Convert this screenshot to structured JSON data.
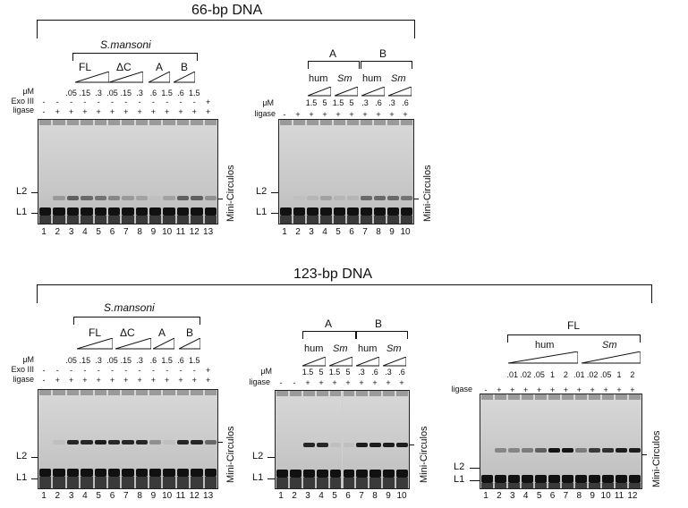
{
  "top": {
    "title": "66-bp DNA",
    "left": {
      "group_label": "S.mansoni",
      "subgroups": [
        "FL",
        "ΔC",
        "A",
        "B"
      ],
      "um_label": "μM",
      "exo_label": "Exo III",
      "ligase_label": "ligase",
      "um_values": [
        ".05",
        ".15",
        ".3",
        ".05",
        ".15",
        ".3",
        ".6",
        "1.5",
        ".6",
        "1.5",
        ".6",
        "1.5",
        ""
      ],
      "um_display": [
        ".05",
        ".15",
        ".3",
        ".05",
        ".15",
        ".3",
        ".6",
        "1.5",
        ".6",
        "1.5"
      ],
      "exo_values": [
        "-",
        "-",
        "-",
        "-",
        "-",
        "-",
        "-",
        "-",
        "-",
        "-",
        "-",
        "-",
        "+"
      ],
      "ligase_values": [
        "-",
        "+",
        "+",
        "+",
        "+",
        "+",
        "+",
        "+",
        "+",
        "+",
        "+",
        "+",
        "+"
      ],
      "lanes": [
        "1",
        "2",
        "3",
        "4",
        "5",
        "6",
        "7",
        "8",
        "9",
        "10",
        "11",
        "12",
        "13"
      ],
      "band_l2": "L2",
      "band_l1": "L1",
      "side_label": "Mini-Circulos"
    },
    "right": {
      "groups": [
        "A",
        "B"
      ],
      "subgroups": [
        "hum",
        "Sm",
        "hum",
        "Sm"
      ],
      "um_label": "μM",
      "ligase_label": "ligase",
      "um_values": [
        "1.5",
        "5",
        "1.5",
        "5",
        ".3",
        ".6",
        ".3",
        ".6"
      ],
      "ligase_values": [
        "-",
        "+",
        "+",
        "+",
        "+",
        "+",
        "+",
        "+",
        "+",
        "+"
      ],
      "lanes": [
        "1",
        "2",
        "3",
        "4",
        "5",
        "6",
        "7",
        "8",
        "9",
        "10"
      ],
      "band_l2": "L2",
      "band_l1": "L1",
      "side_label": "Mini-Circulos"
    }
  },
  "bottom": {
    "title": "123-bp DNA",
    "left": {
      "group_label": "S.mansoni",
      "subgroups": [
        "FL",
        "ΔC",
        "A",
        "B"
      ],
      "um_label": "μM",
      "exo_label": "Exo III",
      "ligase_label": "ligase",
      "um_values": [
        ".05",
        ".15",
        ".3",
        ".05",
        ".15",
        ".3",
        ".6",
        "1.5",
        ".6",
        "1.5"
      ],
      "exo_values": [
        "-",
        "-",
        "-",
        "-",
        "-",
        "-",
        "-",
        "-",
        "-",
        "-",
        "-",
        "-",
        "+"
      ],
      "ligase_values": [
        "-",
        "+",
        "+",
        "+",
        "+",
        "+",
        "+",
        "+",
        "+",
        "+",
        "+",
        "+",
        "+"
      ],
      "lanes": [
        "1",
        "2",
        "3",
        "4",
        "5",
        "6",
        "7",
        "8",
        "9",
        "10",
        "11",
        "12",
        "13"
      ],
      "band_l2": "L2",
      "band_l1": "L1",
      "side_label": "Mini-Circulos"
    },
    "middle": {
      "groups": [
        "A",
        "B"
      ],
      "subgroups": [
        "hum",
        "Sm",
        "hum",
        "Sm"
      ],
      "um_label": "μM",
      "ligase_label": "ligase",
      "um_values": [
        "1.5",
        "5",
        "1.5",
        "5",
        ".3",
        ".6",
        ".3",
        ".6"
      ],
      "ligase_values": [
        "-",
        "-",
        "+",
        "+",
        "+",
        "+",
        "+",
        "+",
        "+",
        "+"
      ],
      "lanes": [
        "1",
        "2",
        "3",
        "4",
        "5",
        "6",
        "7",
        "8",
        "9",
        "10"
      ],
      "band_l2": "L2",
      "band_l1": "L1",
      "side_label": "Mini-Circulos"
    },
    "right": {
      "group_label": "FL",
      "subgroups": [
        "hum",
        "Sm"
      ],
      "ligase_label": "ligase",
      "um_values": [
        ".01",
        ".02",
        ".05",
        "1",
        "2",
        ".01",
        ".02",
        ".05",
        "1",
        "2"
      ],
      "ligase_values": [
        "-",
        "+",
        "+",
        "+",
        "+",
        "+",
        "+",
        "+",
        "+",
        "+",
        "+",
        "+"
      ],
      "lanes": [
        "1",
        "2",
        "3",
        "4",
        "5",
        "6",
        "7",
        "8",
        "9",
        "10",
        "11",
        "12"
      ],
      "band_l2": "L2",
      "band_l1": "L1",
      "side_label": "Mini-Circulos"
    }
  },
  "l2_intensity": {
    "top_left": [
      0,
      0.25,
      0.55,
      0.5,
      0.45,
      0.35,
      0.25,
      0.2,
      0.05,
      0.2,
      0.55,
      0.55,
      0.3
    ],
    "top_right": [
      0,
      0.05,
      0.1,
      0.2,
      0.1,
      0.1,
      0.5,
      0.5,
      0.5,
      0.45
    ],
    "bot_left": [
      0,
      0.05,
      0.85,
      0.85,
      0.9,
      0.85,
      0.85,
      0.85,
      0.3,
      0.05,
      0.85,
      0.85,
      0.5
    ],
    "bot_middle": [
      0,
      0,
      0.85,
      0.85,
      0.05,
      0.05,
      0.9,
      0.9,
      0.9,
      0.9
    ],
    "bot_right": [
      0,
      0.35,
      0.35,
      0.4,
      0.55,
      0.95,
      0.95,
      0.4,
      0.75,
      0.8,
      0.9,
      0.9
    ]
  }
}
